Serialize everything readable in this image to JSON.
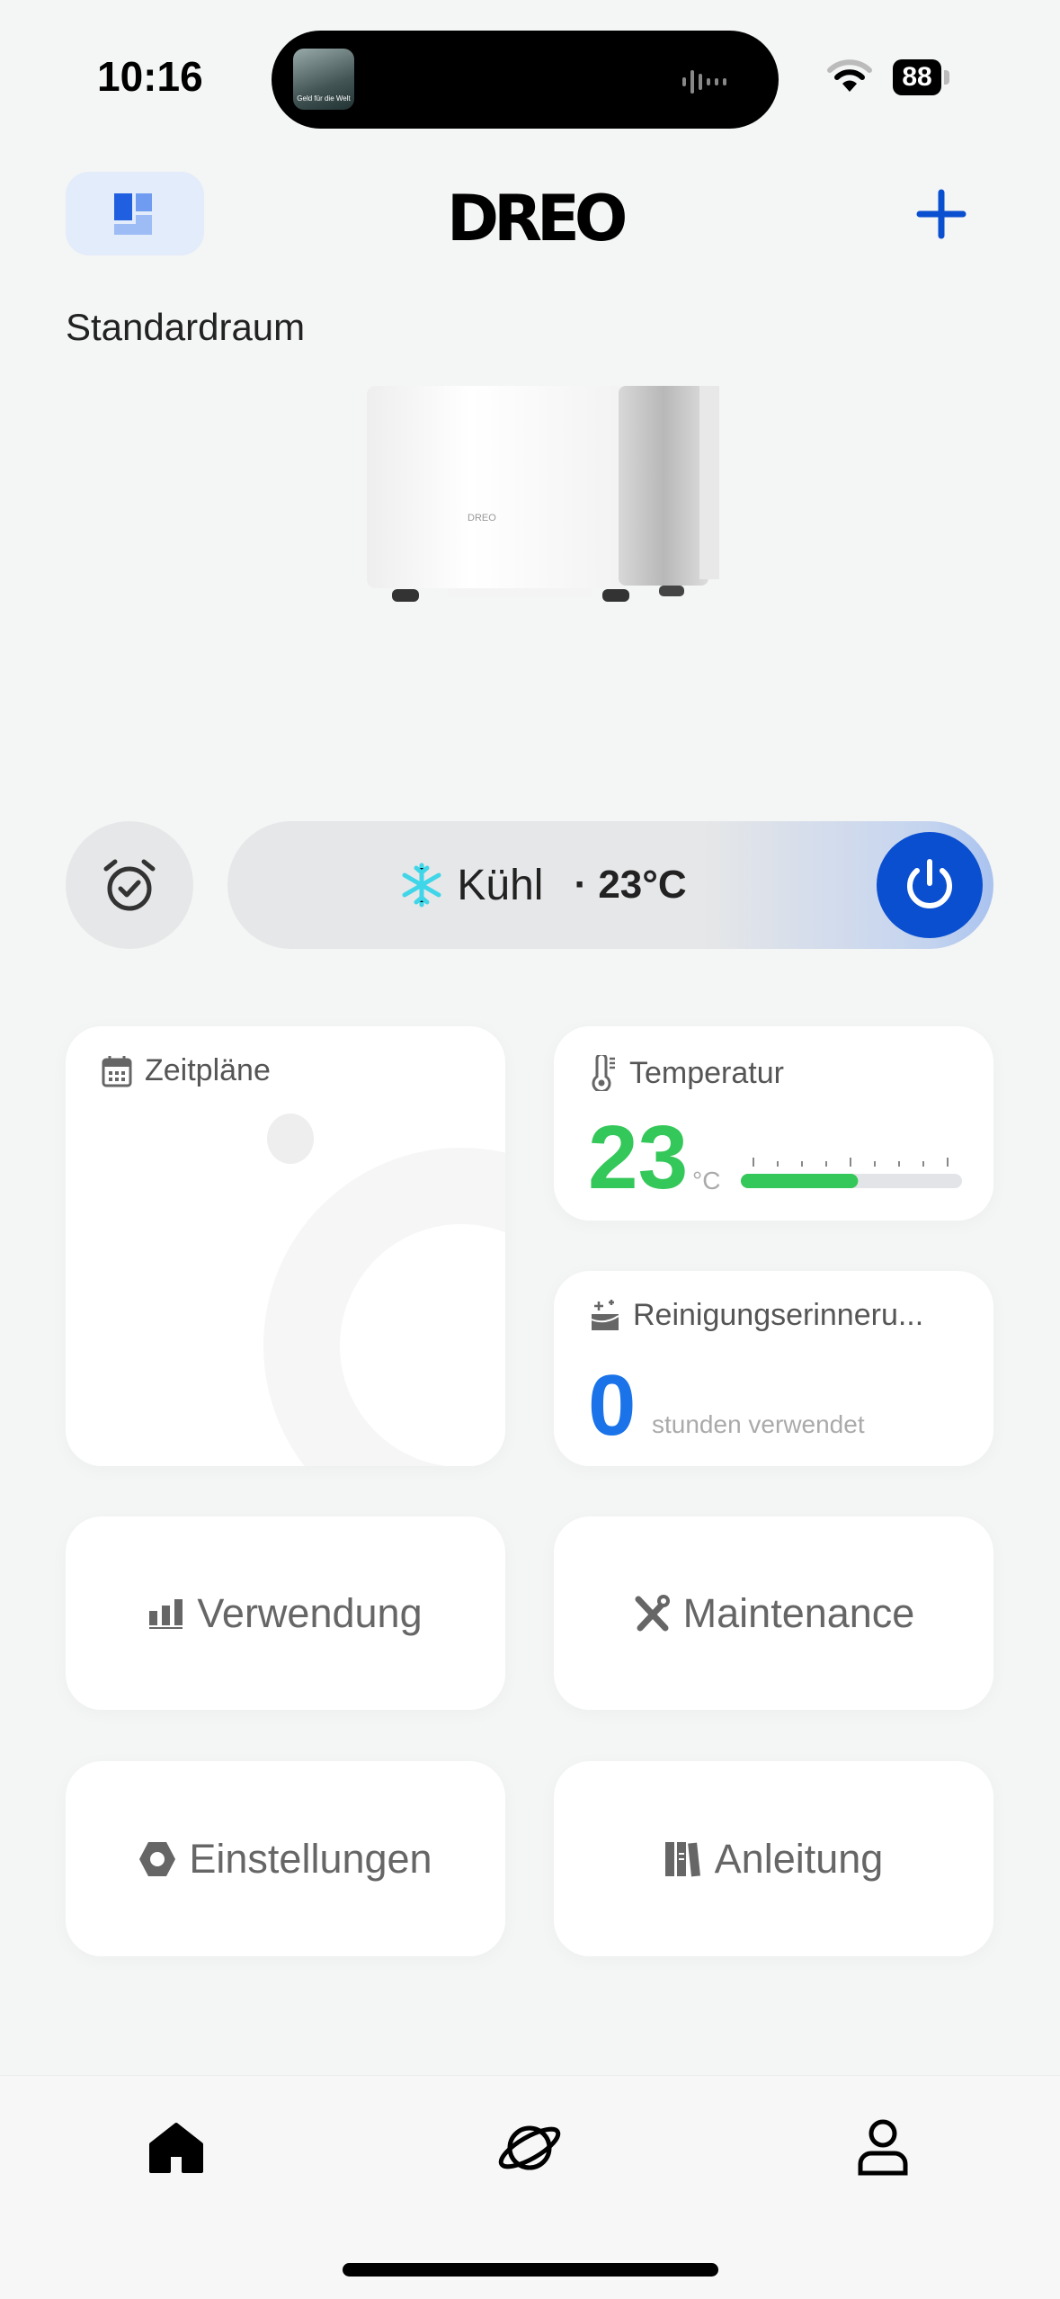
{
  "status_bar": {
    "time": "10:16",
    "battery": "88",
    "now_playing_art_text": "Geld für die Welt",
    "icons": [
      "wifi-icon",
      "battery-icon",
      "audio-wave-icon"
    ]
  },
  "header": {
    "logo": "DREO",
    "room_switch_icon": "room-layout-icon",
    "add_icon": "plus-icon",
    "accent": "#0a4fd0"
  },
  "room": {
    "name": "Standardraum"
  },
  "product": {
    "logo_text": "DREO"
  },
  "controls": {
    "timer_icon": "alarm-clock-check-icon",
    "mode_icon": "snowflake-icon",
    "mode": "Kühl",
    "temp": "· 23°C",
    "power_icon": "power-icon",
    "power_color": "#0a4fd0"
  },
  "cards": {
    "schedules": {
      "title": "Zeitpläne",
      "icon": "calendar-icon"
    },
    "temperature": {
      "title": "Temperatur",
      "icon": "thermometer-icon",
      "value": "23",
      "unit": "°C",
      "level_fraction": 0.53,
      "color": "#34c759"
    },
    "cleaning": {
      "title": "Reinigungserinneru...",
      "icon": "cleaning-icon",
      "value": "0",
      "caption": "stunden verwendet",
      "color": "#1a73e8"
    },
    "usage": {
      "label": "Verwendung",
      "icon": "bar-chart-icon"
    },
    "maintenance": {
      "label": "Maintenance",
      "icon": "tools-icon"
    },
    "settings": {
      "label": "Einstellungen",
      "icon": "hexagon-icon"
    },
    "manual": {
      "label": "Anleitung",
      "icon": "books-icon"
    }
  },
  "tab_bar": {
    "items": [
      {
        "icon": "home-icon",
        "active": true
      },
      {
        "icon": "planet-icon"
      },
      {
        "icon": "user-icon"
      }
    ]
  }
}
